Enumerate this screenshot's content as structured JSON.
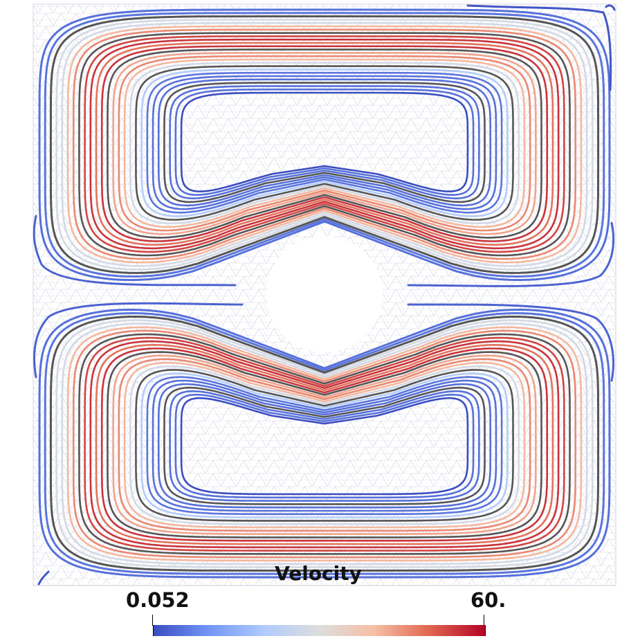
{
  "legend": {
    "title": "Velocity",
    "min_label": "0.052",
    "max_label": "60."
  },
  "colormap": {
    "name": "cool-to-warm",
    "stops": [
      "#3b4cc0",
      "#7396f5",
      "#b0cbfc",
      "#dddddd",
      "#f6bfa6",
      "#e0654f",
      "#b40426"
    ]
  },
  "colors": {
    "mesh": "#c9c9dc",
    "obstacle": "#ffffff",
    "background": "#ffffff"
  }
}
